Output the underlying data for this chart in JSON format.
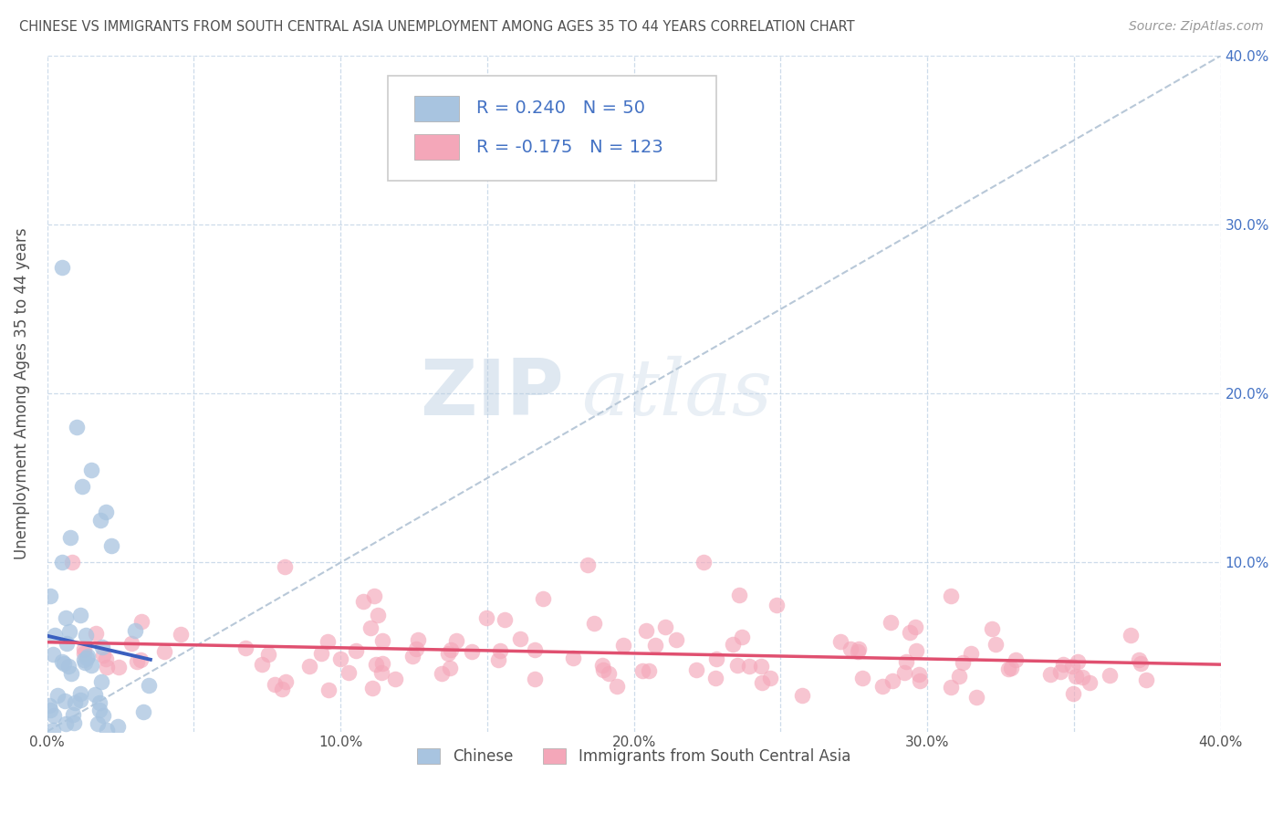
{
  "title": "CHINESE VS IMMIGRANTS FROM SOUTH CENTRAL ASIA UNEMPLOYMENT AMONG AGES 35 TO 44 YEARS CORRELATION CHART",
  "source": "Source: ZipAtlas.com",
  "ylabel": "Unemployment Among Ages 35 to 44 years",
  "xlim": [
    0.0,
    0.4
  ],
  "ylim": [
    0.0,
    0.4
  ],
  "xtick_labels": [
    "0.0%",
    "",
    "10.0%",
    "",
    "20.0%",
    "",
    "30.0%",
    "",
    "40.0%"
  ],
  "xtick_vals": [
    0.0,
    0.05,
    0.1,
    0.15,
    0.2,
    0.25,
    0.3,
    0.35,
    0.4
  ],
  "ytick_labels": [
    "10.0%",
    "20.0%",
    "30.0%",
    "40.0%"
  ],
  "ytick_vals": [
    0.1,
    0.2,
    0.3,
    0.4
  ],
  "right_ytick_labels": [
    "10.0%",
    "20.0%",
    "30.0%",
    "40.0%"
  ],
  "right_ytick_vals": [
    0.1,
    0.2,
    0.3,
    0.4
  ],
  "legend_label1": "Chinese",
  "legend_label2": "Immigrants from South Central Asia",
  "R1": 0.24,
  "N1": 50,
  "R2": -0.175,
  "N2": 123,
  "scatter1_color": "#a8c4e0",
  "scatter2_color": "#f4a7b9",
  "line1_color": "#3a5fbf",
  "line2_color": "#e05070",
  "trendline_color": "#b8c8d8",
  "watermark_zip": "ZIP",
  "watermark_atlas": "atlas",
  "background_color": "#ffffff",
  "grid_color": "#c8d8e8",
  "title_color": "#505050",
  "axis_label_color": "#505050",
  "tick_color": "#505050",
  "right_tick_color": "#4472c4",
  "legend_color": "#4472c4"
}
